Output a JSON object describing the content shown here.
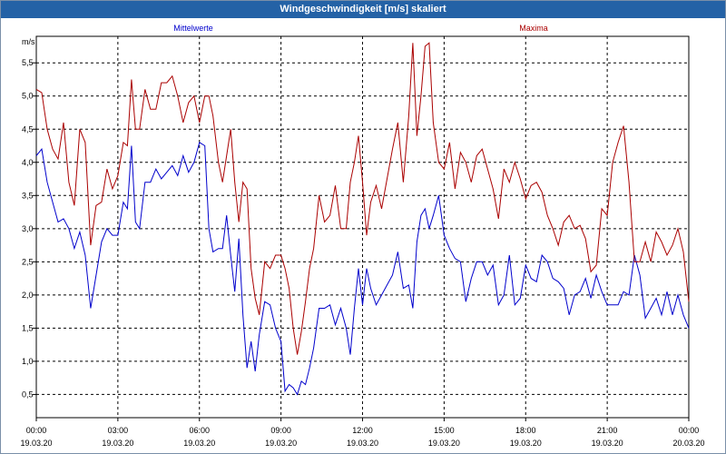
{
  "window": {
    "title": "Windgeschwindigkeit [m/s] skaliert"
  },
  "chart_data": {
    "type": "line",
    "title": "Windgeschwindigkeit [m/s] skaliert",
    "ylabel": "m/s",
    "xlabel": "",
    "ylim": [
      0.15,
      5.9
    ],
    "xlim": [
      0,
      24
    ],
    "y_ticks": [
      0.5,
      1.0,
      1.5,
      2.0,
      2.5,
      3.0,
      3.5,
      4.0,
      4.5,
      5.0,
      5.5
    ],
    "y_tick_labels": [
      "0,5",
      "1,0",
      "1,5",
      "2,0",
      "2,5",
      "3,0",
      "3,5",
      "4,0",
      "4,5",
      "5,0",
      "5,5"
    ],
    "x_ticks": [
      {
        "x": 0,
        "time": "00:00",
        "date": "19.03.20"
      },
      {
        "x": 3,
        "time": "03:00",
        "date": "19.03.20"
      },
      {
        "x": 6,
        "time": "06:00",
        "date": "19.03.20"
      },
      {
        "x": 9,
        "time": "09:00",
        "date": "19.03.20"
      },
      {
        "x": 12,
        "time": "12:00",
        "date": "19.03.20"
      },
      {
        "x": 15,
        "time": "15:00",
        "date": "19.03.20"
      },
      {
        "x": 18,
        "time": "18:00",
        "date": "19.03.20"
      },
      {
        "x": 21,
        "time": "21:00",
        "date": "19.03.20"
      },
      {
        "x": 24,
        "time": "00:00",
        "date": "20.03.20"
      }
    ],
    "grid": true,
    "series": [
      {
        "name": "Mittelwerte",
        "color": "#0000cc",
        "points": [
          [
            0.0,
            4.1
          ],
          [
            0.2,
            4.2
          ],
          [
            0.4,
            3.7
          ],
          [
            0.6,
            3.4
          ],
          [
            0.8,
            3.1
          ],
          [
            1.0,
            3.15
          ],
          [
            1.2,
            3.0
          ],
          [
            1.4,
            2.7
          ],
          [
            1.6,
            2.95
          ],
          [
            1.8,
            2.6
          ],
          [
            2.0,
            1.8
          ],
          [
            2.2,
            2.3
          ],
          [
            2.4,
            2.8
          ],
          [
            2.6,
            3.0
          ],
          [
            2.8,
            2.9
          ],
          [
            3.0,
            2.9
          ],
          [
            3.2,
            3.4
          ],
          [
            3.35,
            3.3
          ],
          [
            3.5,
            4.25
          ],
          [
            3.65,
            3.1
          ],
          [
            3.8,
            3.0
          ],
          [
            4.0,
            3.7
          ],
          [
            4.2,
            3.7
          ],
          [
            4.4,
            3.9
          ],
          [
            4.6,
            3.75
          ],
          [
            4.8,
            3.85
          ],
          [
            5.0,
            3.95
          ],
          [
            5.2,
            3.8
          ],
          [
            5.4,
            4.1
          ],
          [
            5.6,
            3.85
          ],
          [
            5.8,
            4.0
          ],
          [
            6.0,
            4.3
          ],
          [
            6.2,
            4.25
          ],
          [
            6.35,
            3.0
          ],
          [
            6.5,
            2.65
          ],
          [
            6.7,
            2.7
          ],
          [
            6.85,
            2.7
          ],
          [
            7.0,
            3.2
          ],
          [
            7.15,
            2.6
          ],
          [
            7.3,
            2.05
          ],
          [
            7.45,
            2.85
          ],
          [
            7.6,
            1.7
          ],
          [
            7.75,
            0.9
          ],
          [
            7.9,
            1.3
          ],
          [
            8.05,
            0.85
          ],
          [
            8.2,
            1.4
          ],
          [
            8.4,
            1.9
          ],
          [
            8.6,
            1.85
          ],
          [
            8.8,
            1.5
          ],
          [
            9.0,
            1.3
          ],
          [
            9.15,
            0.55
          ],
          [
            9.3,
            0.65
          ],
          [
            9.45,
            0.6
          ],
          [
            9.6,
            0.5
          ],
          [
            9.75,
            0.7
          ],
          [
            9.9,
            0.65
          ],
          [
            10.05,
            0.9
          ],
          [
            10.2,
            1.2
          ],
          [
            10.4,
            1.8
          ],
          [
            10.6,
            1.8
          ],
          [
            10.8,
            1.85
          ],
          [
            11.0,
            1.55
          ],
          [
            11.2,
            1.8
          ],
          [
            11.4,
            1.5
          ],
          [
            11.55,
            1.1
          ],
          [
            11.7,
            1.8
          ],
          [
            11.85,
            2.4
          ],
          [
            12.0,
            1.85
          ],
          [
            12.15,
            2.4
          ],
          [
            12.3,
            2.1
          ],
          [
            12.5,
            1.85
          ],
          [
            12.7,
            2.0
          ],
          [
            12.9,
            2.15
          ],
          [
            13.1,
            2.3
          ],
          [
            13.3,
            2.65
          ],
          [
            13.5,
            2.1
          ],
          [
            13.7,
            2.15
          ],
          [
            13.85,
            1.8
          ],
          [
            14.0,
            2.8
          ],
          [
            14.15,
            3.2
          ],
          [
            14.3,
            3.3
          ],
          [
            14.45,
            3.0
          ],
          [
            14.6,
            3.2
          ],
          [
            14.8,
            3.5
          ],
          [
            15.0,
            2.9
          ],
          [
            15.2,
            2.7
          ],
          [
            15.4,
            2.55
          ],
          [
            15.6,
            2.5
          ],
          [
            15.8,
            1.9
          ],
          [
            16.0,
            2.25
          ],
          [
            16.2,
            2.5
          ],
          [
            16.4,
            2.5
          ],
          [
            16.6,
            2.3
          ],
          [
            16.8,
            2.45
          ],
          [
            17.0,
            1.85
          ],
          [
            17.2,
            2.0
          ],
          [
            17.4,
            2.6
          ],
          [
            17.6,
            1.85
          ],
          [
            17.8,
            1.95
          ],
          [
            18.0,
            2.45
          ],
          [
            18.2,
            2.25
          ],
          [
            18.4,
            2.2
          ],
          [
            18.6,
            2.6
          ],
          [
            18.8,
            2.5
          ],
          [
            19.0,
            2.25
          ],
          [
            19.2,
            2.2
          ],
          [
            19.4,
            2.1
          ],
          [
            19.6,
            1.7
          ],
          [
            19.8,
            2.0
          ],
          [
            20.0,
            2.05
          ],
          [
            20.2,
            2.25
          ],
          [
            20.4,
            1.95
          ],
          [
            20.6,
            2.3
          ],
          [
            20.8,
            2.05
          ],
          [
            21.0,
            1.85
          ],
          [
            21.2,
            1.85
          ],
          [
            21.4,
            1.85
          ],
          [
            21.6,
            2.05
          ],
          [
            21.8,
            2.0
          ],
          [
            22.0,
            2.6
          ],
          [
            22.2,
            2.3
          ],
          [
            22.4,
            1.65
          ],
          [
            22.6,
            1.8
          ],
          [
            22.8,
            1.95
          ],
          [
            23.0,
            1.7
          ],
          [
            23.2,
            2.05
          ],
          [
            23.4,
            1.7
          ],
          [
            23.6,
            2.0
          ],
          [
            23.8,
            1.7
          ],
          [
            24.0,
            1.5
          ]
        ]
      },
      {
        "name": "Maxima",
        "color": "#aa0000",
        "points": [
          [
            0.0,
            5.1
          ],
          [
            0.2,
            5.05
          ],
          [
            0.4,
            4.5
          ],
          [
            0.6,
            4.2
          ],
          [
            0.8,
            4.05
          ],
          [
            1.0,
            4.6
          ],
          [
            1.2,
            3.7
          ],
          [
            1.4,
            3.35
          ],
          [
            1.6,
            4.5
          ],
          [
            1.8,
            4.3
          ],
          [
            2.0,
            2.75
          ],
          [
            2.2,
            3.35
          ],
          [
            2.4,
            3.4
          ],
          [
            2.6,
            3.9
          ],
          [
            2.8,
            3.6
          ],
          [
            3.0,
            3.8
          ],
          [
            3.2,
            4.3
          ],
          [
            3.35,
            4.25
          ],
          [
            3.5,
            5.25
          ],
          [
            3.65,
            4.5
          ],
          [
            3.8,
            4.5
          ],
          [
            4.0,
            5.1
          ],
          [
            4.2,
            4.8
          ],
          [
            4.4,
            4.8
          ],
          [
            4.6,
            5.2
          ],
          [
            4.8,
            5.2
          ],
          [
            5.0,
            5.3
          ],
          [
            5.2,
            5.0
          ],
          [
            5.4,
            4.6
          ],
          [
            5.6,
            4.9
          ],
          [
            5.8,
            5.0
          ],
          [
            6.0,
            4.6
          ],
          [
            6.2,
            5.0
          ],
          [
            6.35,
            5.0
          ],
          [
            6.5,
            4.7
          ],
          [
            6.7,
            4.0
          ],
          [
            6.85,
            3.7
          ],
          [
            7.0,
            4.1
          ],
          [
            7.15,
            4.5
          ],
          [
            7.3,
            3.7
          ],
          [
            7.45,
            3.1
          ],
          [
            7.6,
            3.7
          ],
          [
            7.75,
            3.6
          ],
          [
            7.9,
            2.4
          ],
          [
            8.05,
            1.95
          ],
          [
            8.2,
            1.7
          ],
          [
            8.4,
            2.5
          ],
          [
            8.6,
            2.4
          ],
          [
            8.8,
            2.6
          ],
          [
            9.0,
            2.6
          ],
          [
            9.15,
            2.4
          ],
          [
            9.3,
            2.1
          ],
          [
            9.45,
            1.5
          ],
          [
            9.6,
            1.1
          ],
          [
            9.75,
            1.45
          ],
          [
            9.9,
            1.9
          ],
          [
            10.05,
            2.4
          ],
          [
            10.2,
            2.7
          ],
          [
            10.4,
            3.5
          ],
          [
            10.6,
            3.1
          ],
          [
            10.8,
            3.2
          ],
          [
            11.0,
            3.65
          ],
          [
            11.2,
            3.0
          ],
          [
            11.4,
            3.0
          ],
          [
            11.55,
            3.7
          ],
          [
            11.7,
            4.0
          ],
          [
            11.85,
            4.4
          ],
          [
            12.0,
            3.7
          ],
          [
            12.15,
            2.9
          ],
          [
            12.3,
            3.4
          ],
          [
            12.5,
            3.65
          ],
          [
            12.7,
            3.3
          ],
          [
            12.9,
            3.75
          ],
          [
            13.1,
            4.2
          ],
          [
            13.3,
            4.6
          ],
          [
            13.5,
            3.7
          ],
          [
            13.7,
            4.7
          ],
          [
            13.85,
            5.8
          ],
          [
            14.0,
            4.4
          ],
          [
            14.15,
            5.0
          ],
          [
            14.3,
            5.75
          ],
          [
            14.45,
            5.8
          ],
          [
            14.6,
            4.6
          ],
          [
            14.8,
            4.0
          ],
          [
            15.0,
            3.9
          ],
          [
            15.2,
            4.3
          ],
          [
            15.4,
            3.6
          ],
          [
            15.6,
            4.15
          ],
          [
            15.8,
            4.0
          ],
          [
            16.0,
            3.7
          ],
          [
            16.2,
            4.1
          ],
          [
            16.4,
            4.2
          ],
          [
            16.6,
            3.9
          ],
          [
            16.8,
            3.6
          ],
          [
            17.0,
            3.15
          ],
          [
            17.2,
            3.9
          ],
          [
            17.4,
            3.7
          ],
          [
            17.6,
            4.0
          ],
          [
            17.8,
            3.75
          ],
          [
            18.0,
            3.45
          ],
          [
            18.2,
            3.65
          ],
          [
            18.4,
            3.7
          ],
          [
            18.6,
            3.55
          ],
          [
            18.8,
            3.2
          ],
          [
            19.0,
            3.0
          ],
          [
            19.2,
            2.75
          ],
          [
            19.4,
            3.1
          ],
          [
            19.6,
            3.2
          ],
          [
            19.8,
            3.0
          ],
          [
            20.0,
            3.05
          ],
          [
            20.2,
            2.85
          ],
          [
            20.4,
            2.35
          ],
          [
            20.6,
            2.45
          ],
          [
            20.8,
            3.3
          ],
          [
            21.0,
            3.2
          ],
          [
            21.2,
            4.0
          ],
          [
            21.4,
            4.3
          ],
          [
            21.6,
            4.55
          ],
          [
            21.8,
            3.7
          ],
          [
            22.0,
            2.5
          ],
          [
            22.2,
            2.5
          ],
          [
            22.4,
            2.8
          ],
          [
            22.6,
            2.5
          ],
          [
            22.8,
            2.95
          ],
          [
            23.0,
            2.8
          ],
          [
            23.2,
            2.6
          ],
          [
            23.4,
            2.75
          ],
          [
            23.6,
            3.0
          ],
          [
            23.8,
            2.65
          ],
          [
            24.0,
            1.9
          ]
        ]
      }
    ]
  }
}
